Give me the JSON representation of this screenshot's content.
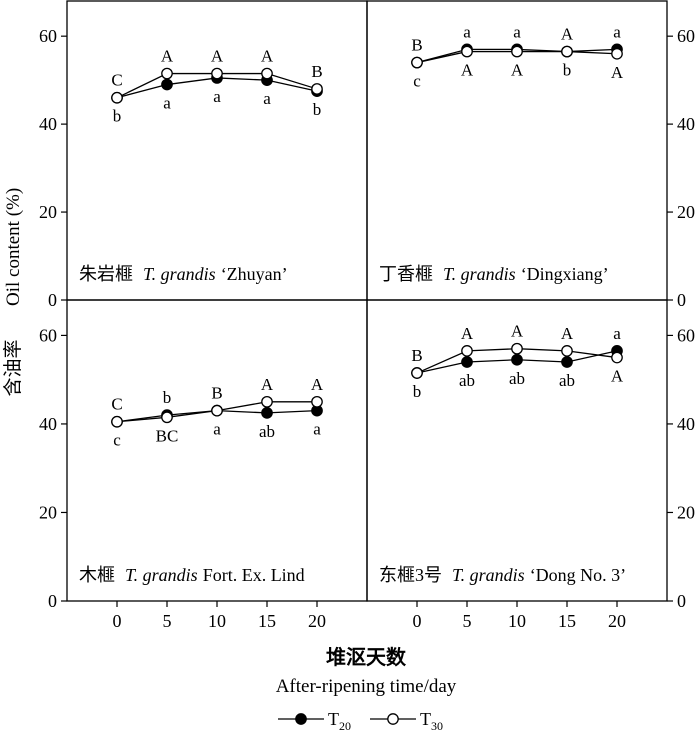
{
  "figure": {
    "ylabel_cn": "含油率",
    "ylabel_en": "Oil content (%)",
    "xlabel_cn": "堆沤天数",
    "xlabel_en": "After-ripening time/day",
    "x_ticks": [
      "0",
      "5",
      "10",
      "15",
      "20"
    ],
    "y_ticks": [
      "0",
      "20",
      "40",
      "60"
    ],
    "legend": [
      {
        "name": "T",
        "sub": "20",
        "marker": "filled"
      },
      {
        "name": "T",
        "sub": "30",
        "marker": "open"
      }
    ],
    "colors": {
      "line": "#000000",
      "filled": "#000000",
      "open": "#ffffff"
    }
  },
  "chart_data": [
    {
      "type": "line",
      "panel": "top-left",
      "label_cn": "朱岩榧",
      "label_species": "T. grandis",
      "label_cultivar": "‘Zhuyan’",
      "x": [
        0,
        5,
        10,
        15,
        20
      ],
      "xlim": [
        -5,
        25
      ],
      "ylim": [
        0,
        68
      ],
      "series": [
        {
          "name": "T20",
          "values": [
            46,
            49,
            50.5,
            50,
            47.5
          ],
          "letters": [
            "b",
            "a",
            "a",
            "a",
            "b"
          ]
        },
        {
          "name": "T30",
          "values": [
            46,
            51.5,
            51.5,
            51.5,
            48
          ],
          "letters": [
            "C",
            "A",
            "A",
            "A",
            "B"
          ]
        }
      ]
    },
    {
      "type": "line",
      "panel": "top-right",
      "label_cn": "丁香榧",
      "label_species": "T. grandis",
      "label_cultivar": "‘Dingxiang’",
      "x": [
        0,
        5,
        10,
        15,
        20
      ],
      "xlim": [
        -5,
        25
      ],
      "ylim": [
        0,
        68
      ],
      "series": [
        {
          "name": "T20",
          "values": [
            54,
            57,
            57,
            56.5,
            57
          ],
          "letters": [
            "c",
            "a",
            "a",
            "b",
            "a"
          ]
        },
        {
          "name": "T30",
          "values": [
            54,
            56.5,
            56.5,
            56.5,
            56
          ],
          "letters": [
            "B",
            "A",
            "A",
            "A",
            "A"
          ]
        }
      ]
    },
    {
      "type": "line",
      "panel": "bottom-left",
      "label_cn": "木榧",
      "label_species": "T. grandis",
      "label_cultivar": "Fort. Ex. Lind",
      "x": [
        0,
        5,
        10,
        15,
        20
      ],
      "xlim": [
        -5,
        25
      ],
      "ylim": [
        0,
        68
      ],
      "series": [
        {
          "name": "T20",
          "values": [
            40.5,
            42,
            43,
            42.5,
            43
          ],
          "letters": [
            "c",
            "b",
            "a",
            "ab",
            "a"
          ]
        },
        {
          "name": "T30",
          "values": [
            40.5,
            41.5,
            43,
            45,
            45
          ],
          "letters": [
            "C",
            "BC",
            "B",
            "A",
            "A"
          ]
        }
      ]
    },
    {
      "type": "line",
      "panel": "bottom-right",
      "label_cn": "东榧3号",
      "label_species": "T. grandis",
      "label_cultivar": "‘Dong No. 3’",
      "x": [
        0,
        5,
        10,
        15,
        20
      ],
      "xlim": [
        -5,
        25
      ],
      "ylim": [
        0,
        68
      ],
      "series": [
        {
          "name": "T20",
          "values": [
            51.5,
            54,
            54.5,
            54,
            56.5
          ],
          "letters": [
            "b",
            "ab",
            "ab",
            "ab",
            "a"
          ]
        },
        {
          "name": "T30",
          "values": [
            51.5,
            56.5,
            57,
            56.5,
            55
          ],
          "letters": [
            "B",
            "A",
            "A",
            "A",
            "A"
          ]
        }
      ]
    }
  ]
}
